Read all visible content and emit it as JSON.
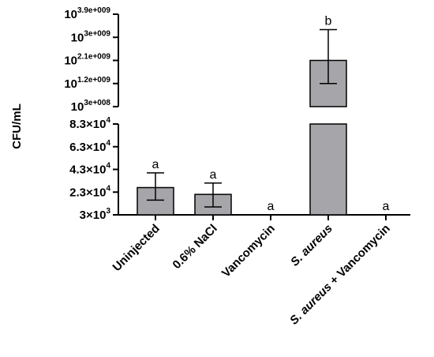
{
  "chart_data": {
    "type": "bar",
    "title": "",
    "xlabel": "",
    "ylabel": "CFU/mL",
    "categories": [
      "Uninjected",
      "0.6% NaCl",
      "Vancomycin",
      "S. aureus",
      "S. aureus + Vancomycin"
    ],
    "category_italic_parts": [
      "",
      "",
      "",
      "S. aureus",
      "S. aureus"
    ],
    "values": [
      27000,
      21000,
      0,
      2100000000.0,
      0
    ],
    "error_upper": [
      40000,
      31000,
      0,
      3300000000.0,
      0
    ],
    "error_lower": [
      16000,
      10000,
      0,
      1200000000.0,
      0
    ],
    "significance_letters": [
      "a",
      "a",
      "a",
      "b",
      "a"
    ],
    "bar_color": "#a6a6aa",
    "axis_color": "#000000",
    "y_axis_broken": true,
    "y_lower_segment": {
      "scale": "linear",
      "ylim": [
        3000,
        83000
      ],
      "ticks": [
        {
          "value": 3000,
          "mantissa": "3",
          "exponent": "3"
        },
        {
          "value": 23000,
          "mantissa": "2.3",
          "exponent": "4"
        },
        {
          "value": 43000,
          "mantissa": "4.3",
          "exponent": "4"
        },
        {
          "value": 63000,
          "mantissa": "6.3",
          "exponent": "4"
        },
        {
          "value": 83000,
          "mantissa": "8.3",
          "exponent": "4"
        }
      ]
    },
    "y_upper_segment": {
      "scale": "linear",
      "ylim": [
        300000000.0,
        3900000000.0
      ],
      "ticks": [
        {
          "value": 300000000.0,
          "base": "10",
          "exponent": "3e+008"
        },
        {
          "value": 1200000000.0,
          "base": "10",
          "exponent": "1.2e+009"
        },
        {
          "value": 2100000000.0,
          "base": "10",
          "exponent": "2.1e+009"
        },
        {
          "value": 3000000000.0,
          "base": "10",
          "exponent": "3e+009"
        },
        {
          "value": 3900000000.0,
          "base": "10",
          "exponent": "3.9e+009"
        }
      ]
    }
  }
}
